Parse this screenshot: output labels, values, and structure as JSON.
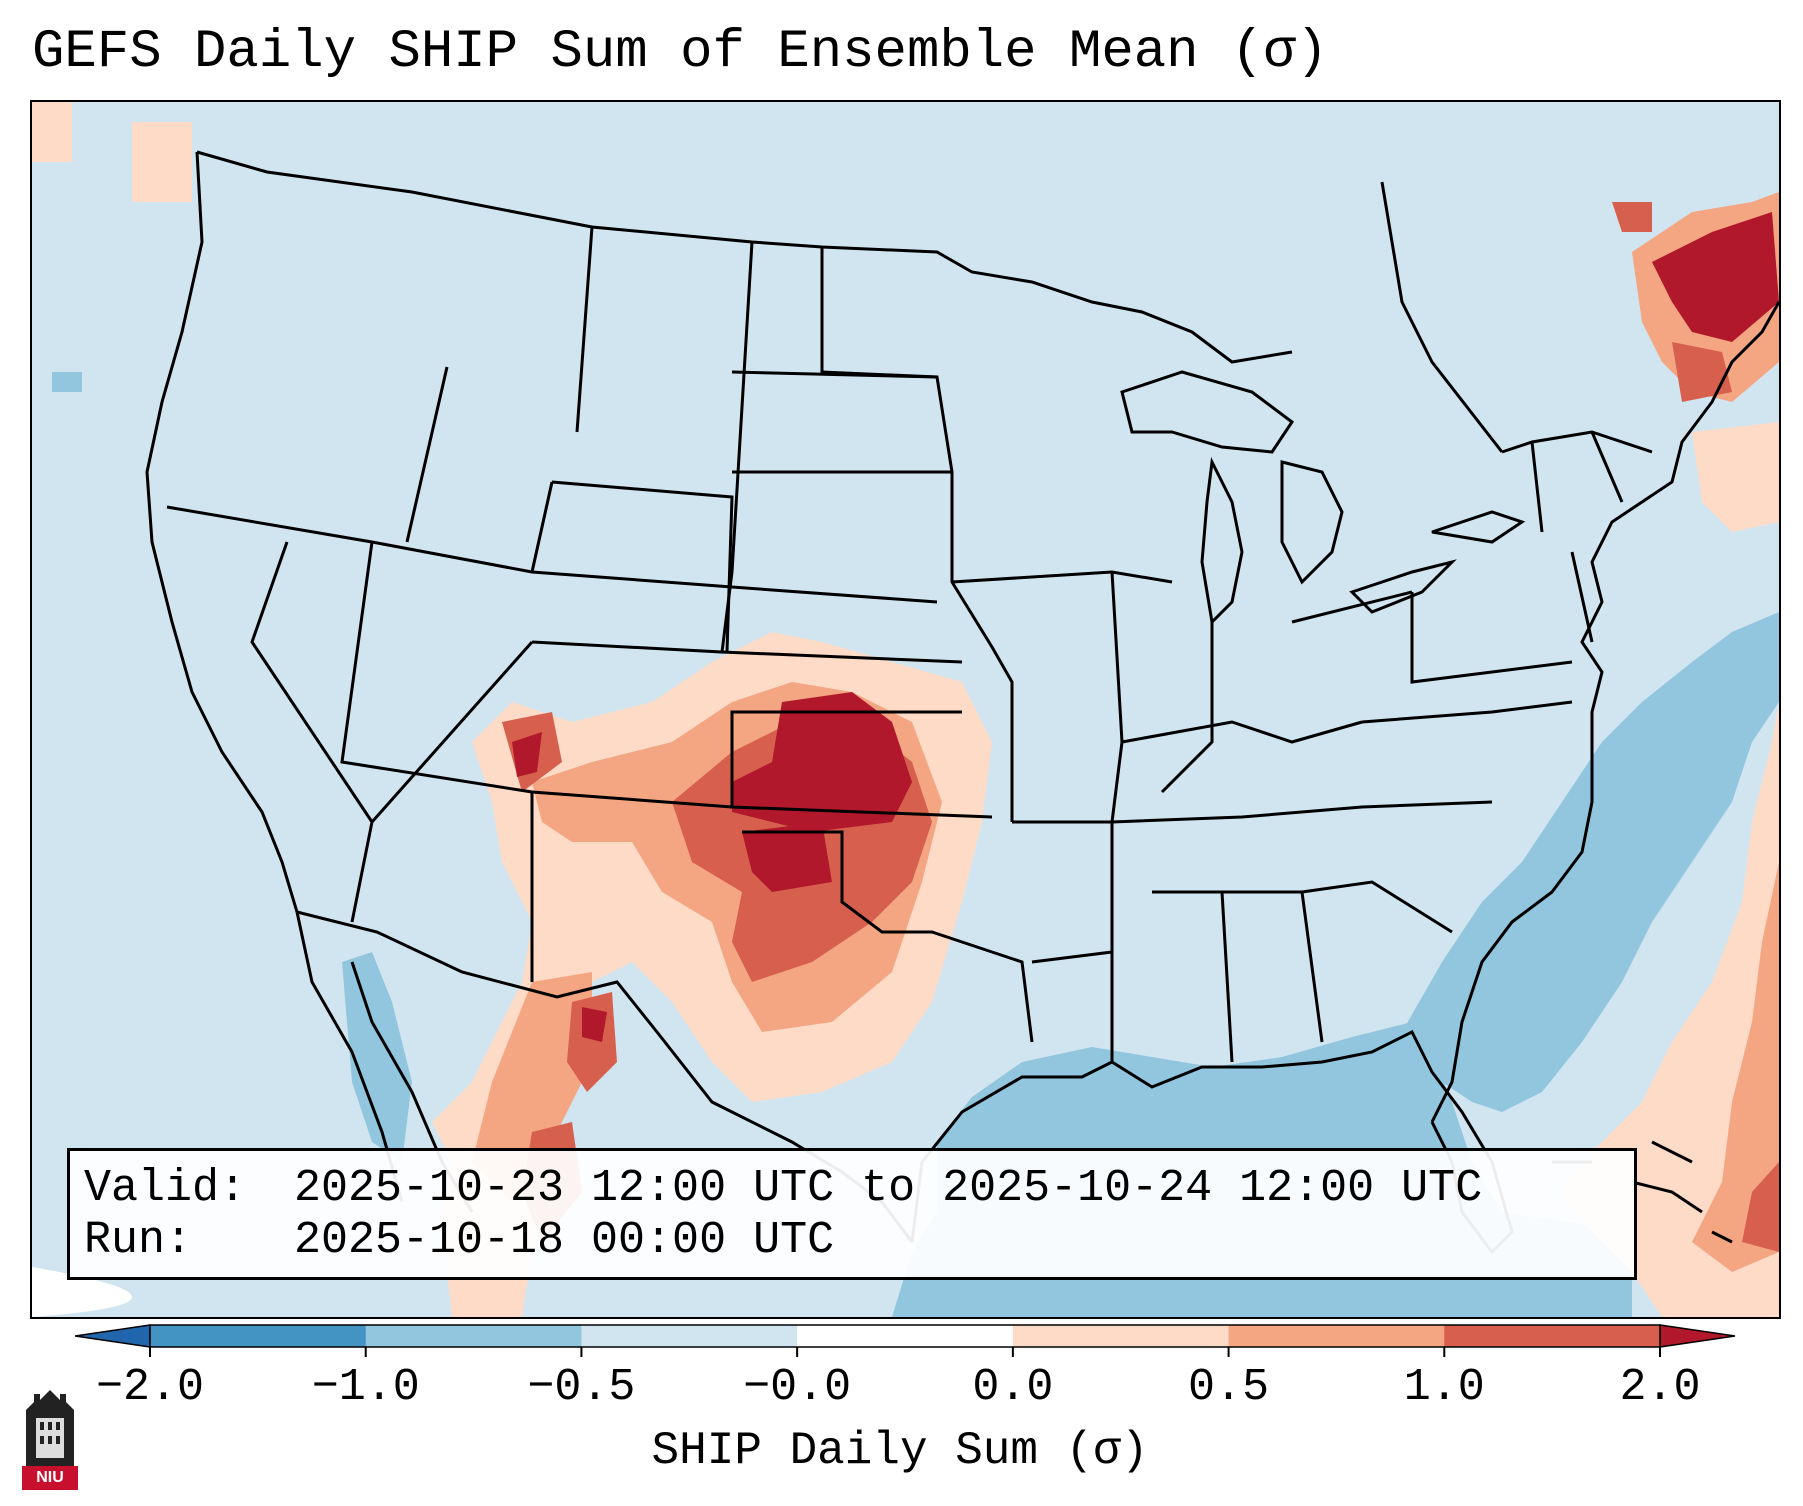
{
  "title": "GEFS Daily SHIP Sum of Ensemble Mean (σ)",
  "info": {
    "valid_label": "Valid:",
    "valid_value": "2025-10-23 12:00 UTC to 2025-10-24 12:00 UTC",
    "run_label": "Run:",
    "run_value": "2025-10-18 00:00 UTC"
  },
  "colorbar": {
    "label": "SHIP Daily Sum (σ)",
    "ticks": [
      "−2.0",
      "−1.0",
      "−0.5",
      "−0.0",
      "0.0",
      "0.5",
      "1.0",
      "2.0"
    ],
    "bins": [
      {
        "from": -2.0,
        "to": -1.0,
        "color": "#4393c3"
      },
      {
        "from": -1.0,
        "to": -0.5,
        "color": "#92c5de"
      },
      {
        "from": -0.5,
        "to": 0.0,
        "color": "#d1e5f0"
      },
      {
        "from": 0.0,
        "to": 0.0,
        "color": "#ffffff"
      },
      {
        "from": 0.0,
        "to": 0.5,
        "color": "#fddbc7"
      },
      {
        "from": 0.5,
        "to": 1.0,
        "color": "#f4a582"
      },
      {
        "from": 1.0,
        "to": 2.0,
        "color": "#d6604d"
      }
    ],
    "under_color": "#2166ac",
    "over_color": "#b2182b"
  },
  "map": {
    "background_color": "#d1e5f0",
    "region": "Contiguous United States, northern Mexico, Gulf of Mexico, western Atlantic",
    "anomaly_areas": [
      {
        "region": "Kansas / Oklahoma / Texas Panhandle",
        "value": 2.1
      },
      {
        "region": "Northeastern Colorado / southern Nebraska",
        "value": 1.5
      },
      {
        "region": "Northern New Mexico / southern Colorado",
        "value": 0.7
      },
      {
        "region": "Southwest Texas / Chihuahua",
        "value": 1.2
      },
      {
        "region": "Utah / Colorado border",
        "value": 0.8
      },
      {
        "region": "Northern Maine / Quebec",
        "value": 2.0
      },
      {
        "region": "Gulf of Mexico",
        "value": -0.8
      },
      {
        "region": "Western Atlantic",
        "value": -0.8
      },
      {
        "region": "Atlantic southeast of Bahamas",
        "value": 0.9
      }
    ]
  },
  "logo": {
    "text": "NIU"
  }
}
